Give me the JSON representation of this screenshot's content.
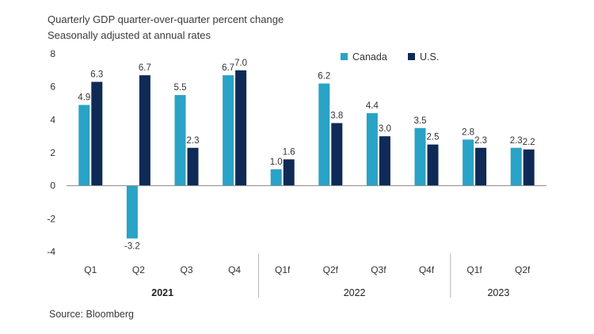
{
  "chart_data": {
    "type": "bar",
    "title": "Quarterly GDP quarter-over-quarter percent change",
    "subtitle": "Seasonally adjusted at annual rates",
    "source": "Source: Bloomberg",
    "categories": [
      "Q1",
      "Q2",
      "Q3",
      "Q4",
      "Q1f",
      "Q2f",
      "Q3f",
      "Q4f",
      "Q1f",
      "Q2f"
    ],
    "groups": [
      {
        "label": "2021",
        "count": 4
      },
      {
        "label": "2022",
        "count": 4
      },
      {
        "label": "2023",
        "count": 2
      }
    ],
    "series": [
      {
        "name": "Canada",
        "color": "#29a3c6",
        "values": [
          4.9,
          -3.2,
          5.5,
          6.7,
          1.0,
          6.2,
          4.4,
          3.5,
          2.8,
          2.3
        ],
        "labels": [
          "4.9",
          "-3.2",
          "5.5",
          "6.7",
          "1.0",
          "6.2",
          "4.4",
          "3.5",
          "2.8",
          "2.3"
        ]
      },
      {
        "name": "U.S.",
        "color": "#0e2a56",
        "values": [
          6.3,
          6.7,
          2.3,
          7.0,
          1.6,
          3.8,
          3.0,
          2.5,
          2.3,
          2.2
        ],
        "labels": [
          "6.3",
          "6.7",
          "2.3",
          "7.0",
          "1.6",
          "3.8",
          "3.0",
          "2.5",
          "2.3",
          "2.2"
        ]
      }
    ],
    "yticks": [
      "8",
      "6",
      "4",
      "2",
      "0",
      "-2",
      "-4"
    ],
    "ylim": [
      -4,
      8
    ],
    "legend_position": "top-right",
    "grid": false
  }
}
